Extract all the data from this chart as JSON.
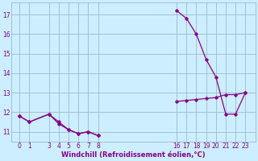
{
  "line1_x": [
    0,
    1,
    3,
    4,
    5,
    6,
    7,
    8,
    16,
    17,
    18,
    19,
    20,
    21,
    22,
    23
  ],
  "line1_y": [
    11.8,
    11.5,
    11.9,
    11.4,
    11.1,
    10.9,
    11.0,
    10.8,
    17.2,
    16.8,
    16.0,
    14.7,
    13.8,
    11.9,
    11.9,
    13.0
  ],
  "line2_x": [
    0,
    1,
    3,
    4,
    5,
    6,
    7,
    8,
    16,
    17,
    18,
    19,
    20,
    21,
    22,
    23
  ],
  "line2_y": [
    11.8,
    11.5,
    11.9,
    11.5,
    11.1,
    10.9,
    11.0,
    10.8,
    12.55,
    12.6,
    12.65,
    12.7,
    12.75,
    12.9,
    12.9,
    13.0
  ],
  "line_color": "#880088",
  "bg_color": "#cceeff",
  "grid_color": "#99bbcc",
  "xlabel": "Windchill (Refroidissement éolien,°C)",
  "xlabel_color": "#880088",
  "yticks": [
    11,
    12,
    13,
    14,
    15,
    16,
    17
  ],
  "xticks": [
    0,
    1,
    3,
    4,
    5,
    6,
    7,
    8,
    16,
    17,
    18,
    19,
    20,
    21,
    22,
    23
  ],
  "xtick_labels": [
    "0",
    "1",
    "3",
    "4",
    "5",
    "6",
    "7",
    "8",
    "16",
    "17",
    "18",
    "19",
    "20",
    "21",
    "22",
    "23"
  ],
  "ylim": [
    10.5,
    17.6
  ],
  "xlim": [
    -0.8,
    24.0
  ],
  "figwidth": 3.2,
  "figheight": 2.0,
  "dpi": 100
}
